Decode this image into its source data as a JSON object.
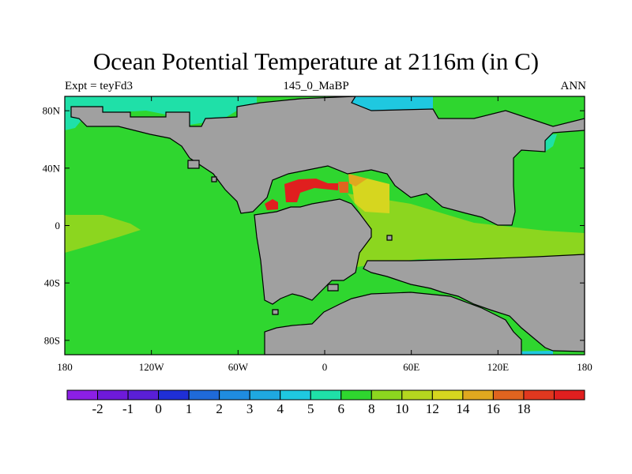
{
  "title": "Ocean Potential Temperature at 2116m (in C)",
  "left_string": "Expt = teyFd3",
  "center_string": "145_0_MaBP",
  "right_string": "ANN",
  "x_ticks": [
    {
      "lon": -180,
      "label": "180"
    },
    {
      "lon": -120,
      "label": "120W"
    },
    {
      "lon": -60,
      "label": "60W"
    },
    {
      "lon": 0,
      "label": "0"
    },
    {
      "lon": 60,
      "label": "60E"
    },
    {
      "lon": 120,
      "label": "120E"
    },
    {
      "lon": 180,
      "label": "180"
    }
  ],
  "y_ticks": [
    {
      "lat": 80,
      "label": "80N"
    },
    {
      "lat": 40,
      "label": "40N"
    },
    {
      "lat": 0,
      "label": "0"
    },
    {
      "lat": -40,
      "label": "40S"
    },
    {
      "lat": -80,
      "label": "80S"
    }
  ],
  "colorbar": {
    "colors": [
      "#8c1fe6",
      "#6e1ad9",
      "#5a1fd6",
      "#1f2fd6",
      "#1f6ad9",
      "#1f8ce0",
      "#1fa8e0",
      "#1fc8e0",
      "#1fe0a8",
      "#2fd62f",
      "#8cd61f",
      "#b4d61f",
      "#d6d61f",
      "#e0a81f",
      "#e0641f",
      "#e0381f",
      "#e01f1f"
    ],
    "labels": [
      "-2",
      "-1",
      "0",
      "1",
      "2",
      "3",
      "4",
      "5",
      "6",
      "8",
      "10",
      "12",
      "14",
      "16",
      "18"
    ]
  },
  "land_color": "#a0a0a0",
  "chart_data": {
    "type": "heatmap",
    "title": "Ocean Potential Temperature at 2116m (in C)",
    "lon_range": [
      -180,
      180
    ],
    "lat_range": [
      -90,
      90
    ],
    "units": "C",
    "features": [
      {
        "region": "Pacific / open ocean",
        "value": 7
      },
      {
        "region": "Equatorial Pacific tongue",
        "value": 9
      },
      {
        "region": "Equatorial Indian-side ocean",
        "value": 9.5
      },
      {
        "region": "Arctic patch (teal)",
        "value": 5.5
      },
      {
        "region": "Arctic patch (cyan)",
        "value": 4.5
      },
      {
        "region": "Tethys east (yellow)",
        "value": 11
      },
      {
        "region": "Tethys (orange)",
        "value": 14.5
      },
      {
        "region": "Tethys west (red)",
        "value": 17
      }
    ]
  }
}
